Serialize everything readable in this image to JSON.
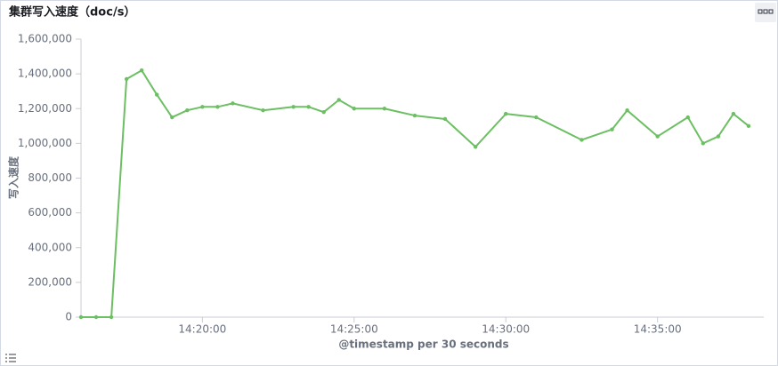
{
  "chart_data": {
    "type": "line",
    "title": "集群写入速度（doc/s）",
    "x_label": "@timestamp per 30 seconds",
    "y_label": "写入速度",
    "x": [
      "14:16:00",
      "14:16:30",
      "14:17:00",
      "14:17:30",
      "14:18:00",
      "14:18:30",
      "14:19:00",
      "14:19:30",
      "14:20:00",
      "14:20:30",
      "14:21:00",
      "14:22:00",
      "14:23:00",
      "14:23:30",
      "14:24:00",
      "14:24:30",
      "14:25:00",
      "14:26:00",
      "14:27:00",
      "14:28:00",
      "14:29:00",
      "14:30:00",
      "14:31:00",
      "14:32:30",
      "14:33:30",
      "14:34:00",
      "14:35:00",
      "14:36:00",
      "14:36:30",
      "14:37:00",
      "14:37:30",
      "14:38:00"
    ],
    "values": [
      0,
      0,
      0,
      1370000,
      1420000,
      1280000,
      1150000,
      1190000,
      1210000,
      1210000,
      1230000,
      1190000,
      1210000,
      1210000,
      1180000,
      1250000,
      1200000,
      1200000,
      1160000,
      1140000,
      980000,
      1170000,
      1150000,
      1020000,
      1080000,
      1190000,
      1040000,
      1150000,
      1000000,
      1040000,
      1170000,
      1100000
    ],
    "color": "#6cbf62",
    "xlim": [
      "14:16:00",
      "14:38:30"
    ],
    "xticks": [
      "14:20:00",
      "14:25:00",
      "14:30:00",
      "14:35:00"
    ],
    "ylim": [
      0,
      1600000
    ],
    "yticks": [
      0,
      {
        "value": 200000,
        "label": "200,000"
      },
      {
        "value": 400000,
        "label": "400,000"
      },
      {
        "value": 600000,
        "label": "600,000"
      },
      {
        "value": 800000,
        "label": "800,000"
      },
      {
        "value": 1000000,
        "label": "1,000,000"
      },
      {
        "value": 1200000,
        "label": "1,200,000"
      },
      {
        "value": 1400000,
        "label": "1,400,000"
      },
      {
        "value": 1600000,
        "label": "1,600,000"
      }
    ]
  }
}
